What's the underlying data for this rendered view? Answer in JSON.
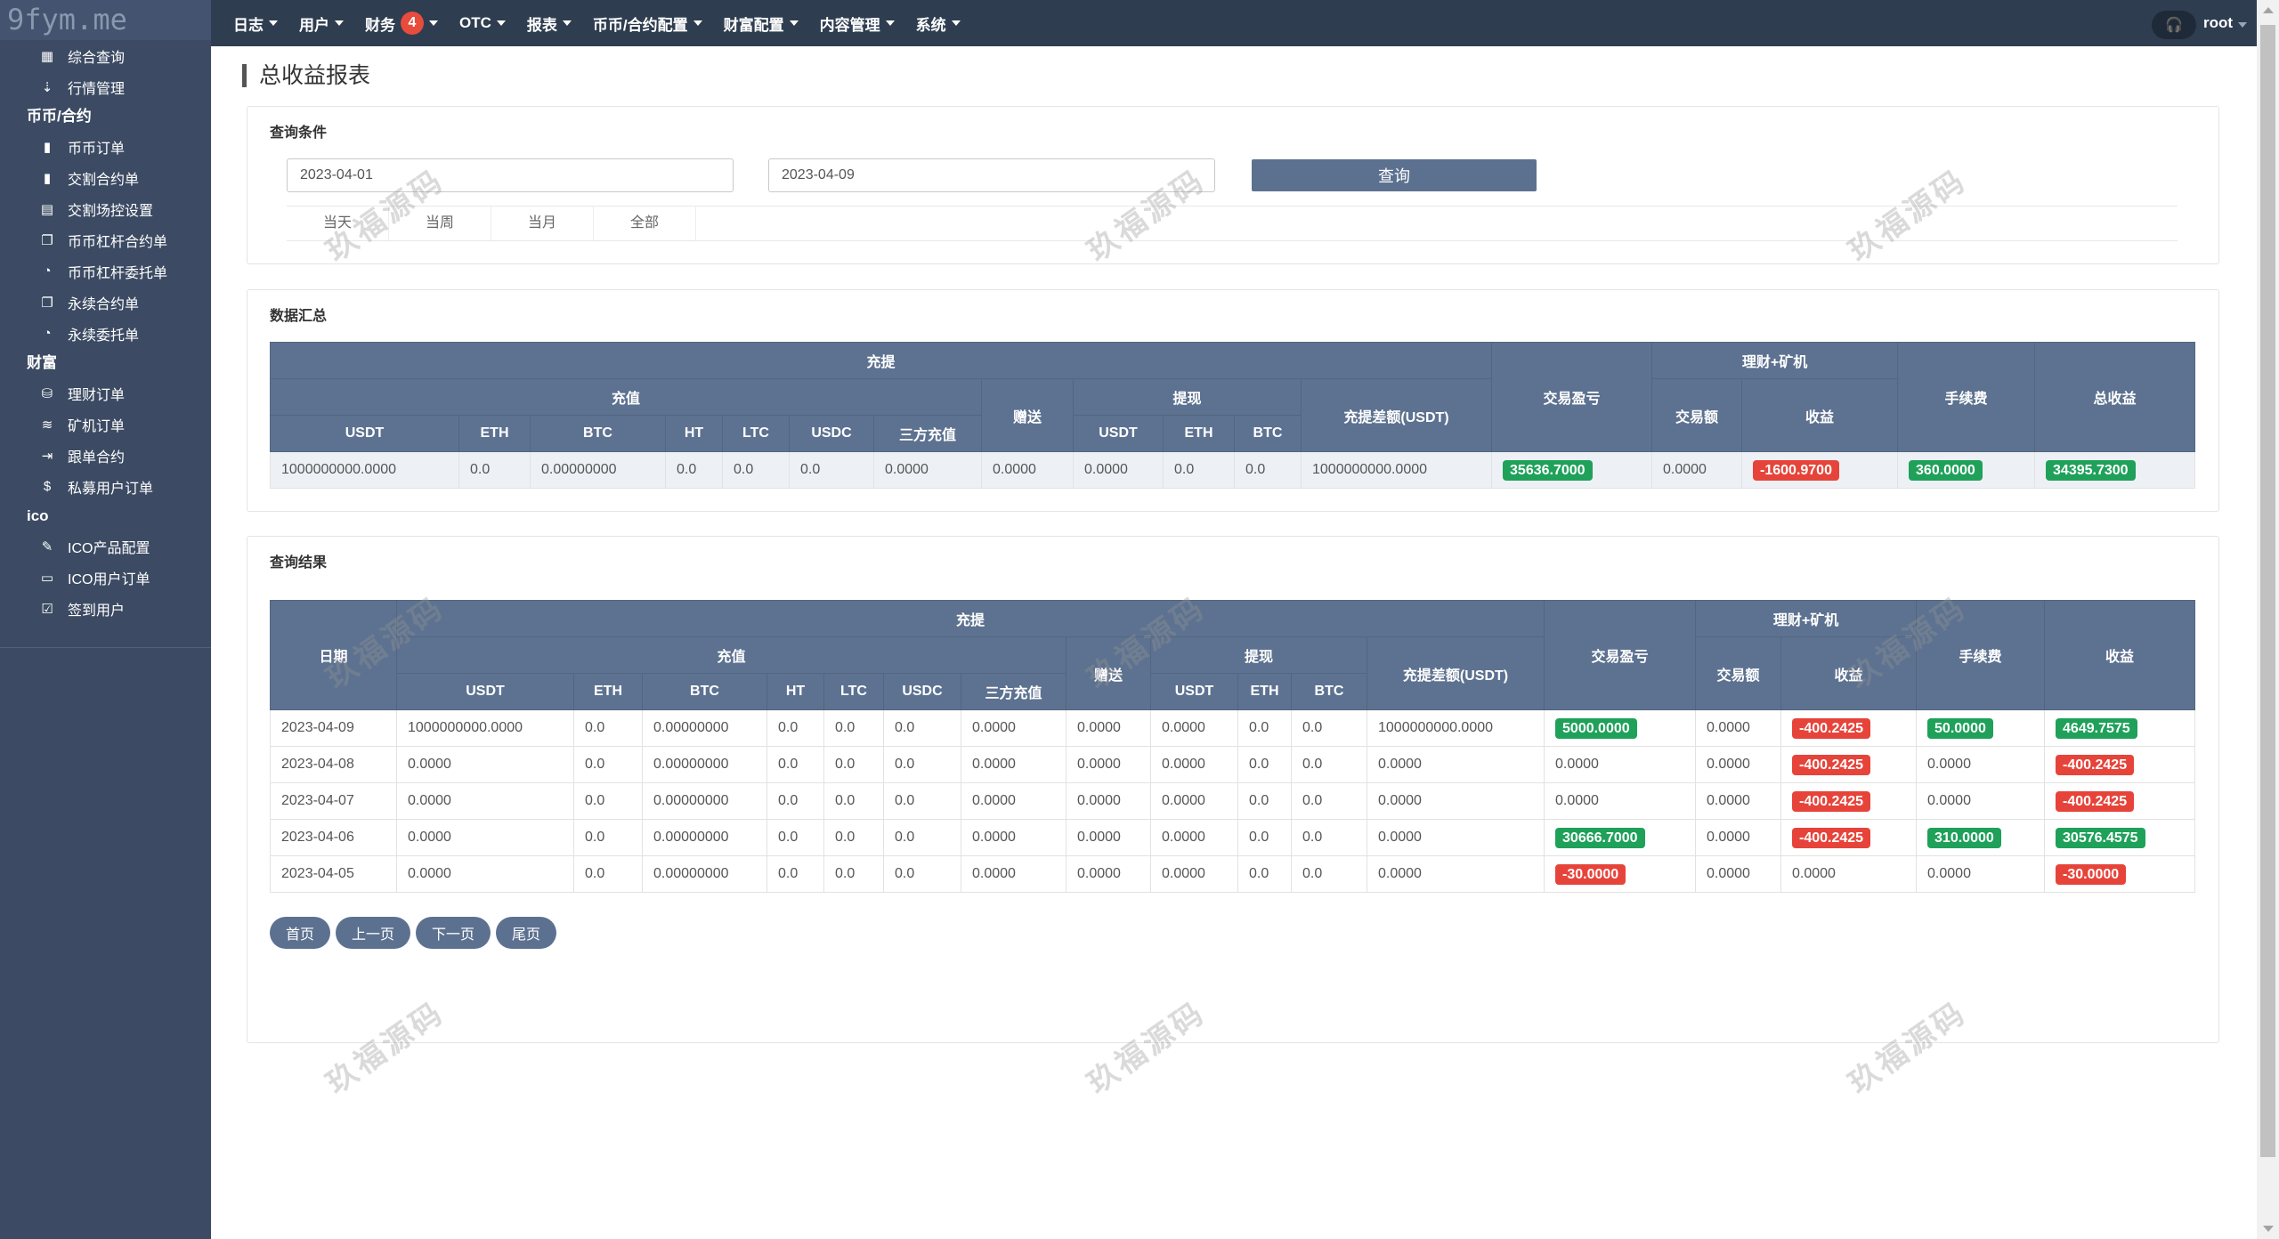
{
  "logo": "9fym.me",
  "sidebar": {
    "entries": [
      {
        "type": "item",
        "label": "综合查询",
        "icon": "grid-icon"
      },
      {
        "type": "item",
        "label": "行情管理",
        "icon": "sort-icon"
      },
      {
        "type": "group",
        "label": "币币/合约"
      },
      {
        "type": "item",
        "label": "币币订单",
        "icon": "bookmark-icon"
      },
      {
        "type": "item",
        "label": "交割合约单",
        "icon": "bookmark-icon"
      },
      {
        "type": "item",
        "label": "交割场控设置",
        "icon": "settings-doc-icon"
      },
      {
        "type": "item",
        "label": "币币杠杆合约单",
        "icon": "copy-icon"
      },
      {
        "type": "item",
        "label": "币币杠杆委托单",
        "icon": "clock-doc-icon"
      },
      {
        "type": "item",
        "label": "永续合约单",
        "icon": "copy-icon"
      },
      {
        "type": "item",
        "label": "永续委托单",
        "icon": "clock-doc-icon"
      },
      {
        "type": "group",
        "label": "财富"
      },
      {
        "type": "item",
        "label": "理财订单",
        "icon": "database-icon"
      },
      {
        "type": "item",
        "label": "矿机订单",
        "icon": "layers-icon"
      },
      {
        "type": "item",
        "label": "跟单合约",
        "icon": "export-icon"
      },
      {
        "type": "item",
        "label": "私募用户订单",
        "icon": "dollar-icon"
      },
      {
        "type": "group",
        "label": "ico"
      },
      {
        "type": "item",
        "label": "ICO产品配置",
        "icon": "edit-doc-icon"
      },
      {
        "type": "item",
        "label": "ICO用户订单",
        "icon": "monitor-icon"
      },
      {
        "type": "item",
        "label": "签到用户",
        "icon": "edit-icon"
      }
    ]
  },
  "topnav": {
    "items": [
      {
        "label": "日志"
      },
      {
        "label": "用户"
      },
      {
        "label": "财务",
        "badge": "4"
      },
      {
        "label": "OTC"
      },
      {
        "label": "报表"
      },
      {
        "label": "币币/合约配置"
      },
      {
        "label": "财富配置"
      },
      {
        "label": "内容管理"
      },
      {
        "label": "系统"
      }
    ],
    "support_icon": "headset-icon",
    "user": "root"
  },
  "page_title": "总收益报表",
  "query": {
    "title": "查询条件",
    "start_date": "2023-04-01",
    "end_date": "2023-04-09",
    "button": "查询",
    "quick": [
      "当天",
      "当周",
      "当月",
      "全部"
    ]
  },
  "summary": {
    "title": "数据汇总",
    "header_groups": {
      "chongti": "充提",
      "chongzhi": "充值",
      "zengsong": "赠送",
      "tixian": "提现",
      "diff": "充提差额(USDT)",
      "trade_pl": "交易盈亏",
      "licai": "理财+矿机",
      "trade_amt": "交易额",
      "income": "收益",
      "fee": "手续费",
      "total": "总收益"
    },
    "chongzhi_cols": [
      "USDT",
      "ETH",
      "BTC",
      "HT",
      "LTC",
      "USDC",
      "三方充值"
    ],
    "tixian_cols": [
      "USDT",
      "ETH",
      "BTC"
    ],
    "row": [
      {
        "text": "1000000000.0000"
      },
      {
        "text": "0.0"
      },
      {
        "text": "0.00000000"
      },
      {
        "text": "0.0"
      },
      {
        "text": "0.0"
      },
      {
        "text": "0.0"
      },
      {
        "text": "0.0000"
      },
      {
        "text": "0.0000"
      },
      {
        "text": "0.0000"
      },
      {
        "text": "0.0"
      },
      {
        "text": "0.0"
      },
      {
        "text": "1000000000.0000"
      },
      {
        "text": "35636.7000",
        "badge": "green"
      },
      {
        "text": "0.0000"
      },
      {
        "text": "-1600.9700",
        "badge": "red"
      },
      {
        "text": "360.0000",
        "badge": "green"
      },
      {
        "text": "34395.7300",
        "badge": "green"
      }
    ]
  },
  "results": {
    "title": "查询结果",
    "header_groups": {
      "date": "日期",
      "chongti": "充提",
      "chongzhi": "充值",
      "zengsong": "赠送",
      "tixian": "提现",
      "diff": "充提差额(USDT)",
      "trade_pl": "交易盈亏",
      "licai": "理财+矿机",
      "trade_amt": "交易额",
      "income": "收益",
      "fee": "手续费",
      "total": "收益"
    },
    "chongzhi_cols": [
      "USDT",
      "ETH",
      "BTC",
      "HT",
      "LTC",
      "USDC",
      "三方充值"
    ],
    "tixian_cols": [
      "USDT",
      "ETH",
      "BTC"
    ],
    "rows": [
      [
        {
          "text": "2023-04-09"
        },
        {
          "text": "1000000000.0000"
        },
        {
          "text": "0.0"
        },
        {
          "text": "0.00000000"
        },
        {
          "text": "0.0"
        },
        {
          "text": "0.0"
        },
        {
          "text": "0.0"
        },
        {
          "text": "0.0000"
        },
        {
          "text": "0.0000"
        },
        {
          "text": "0.0000"
        },
        {
          "text": "0.0"
        },
        {
          "text": "0.0"
        },
        {
          "text": "1000000000.0000"
        },
        {
          "text": "5000.0000",
          "badge": "green"
        },
        {
          "text": "0.0000"
        },
        {
          "text": "-400.2425",
          "badge": "red"
        },
        {
          "text": "50.0000",
          "badge": "green"
        },
        {
          "text": "4649.7575",
          "badge": "green"
        }
      ],
      [
        {
          "text": "2023-04-08"
        },
        {
          "text": "0.0000"
        },
        {
          "text": "0.0"
        },
        {
          "text": "0.00000000"
        },
        {
          "text": "0.0"
        },
        {
          "text": "0.0"
        },
        {
          "text": "0.0"
        },
        {
          "text": "0.0000"
        },
        {
          "text": "0.0000"
        },
        {
          "text": "0.0000"
        },
        {
          "text": "0.0"
        },
        {
          "text": "0.0"
        },
        {
          "text": "0.0000"
        },
        {
          "text": "0.0000"
        },
        {
          "text": "0.0000"
        },
        {
          "text": "-400.2425",
          "badge": "red"
        },
        {
          "text": "0.0000"
        },
        {
          "text": "-400.2425",
          "badge": "red"
        }
      ],
      [
        {
          "text": "2023-04-07"
        },
        {
          "text": "0.0000"
        },
        {
          "text": "0.0"
        },
        {
          "text": "0.00000000"
        },
        {
          "text": "0.0"
        },
        {
          "text": "0.0"
        },
        {
          "text": "0.0"
        },
        {
          "text": "0.0000"
        },
        {
          "text": "0.0000"
        },
        {
          "text": "0.0000"
        },
        {
          "text": "0.0"
        },
        {
          "text": "0.0"
        },
        {
          "text": "0.0000"
        },
        {
          "text": "0.0000"
        },
        {
          "text": "0.0000"
        },
        {
          "text": "-400.2425",
          "badge": "red"
        },
        {
          "text": "0.0000"
        },
        {
          "text": "-400.2425",
          "badge": "red"
        }
      ],
      [
        {
          "text": "2023-04-06"
        },
        {
          "text": "0.0000"
        },
        {
          "text": "0.0"
        },
        {
          "text": "0.00000000"
        },
        {
          "text": "0.0"
        },
        {
          "text": "0.0"
        },
        {
          "text": "0.0"
        },
        {
          "text": "0.0000"
        },
        {
          "text": "0.0000"
        },
        {
          "text": "0.0000"
        },
        {
          "text": "0.0"
        },
        {
          "text": "0.0"
        },
        {
          "text": "0.0000"
        },
        {
          "text": "30666.7000",
          "badge": "green"
        },
        {
          "text": "0.0000"
        },
        {
          "text": "-400.2425",
          "badge": "red"
        },
        {
          "text": "310.0000",
          "badge": "green"
        },
        {
          "text": "30576.4575",
          "badge": "green"
        }
      ],
      [
        {
          "text": "2023-04-05"
        },
        {
          "text": "0.0000"
        },
        {
          "text": "0.0"
        },
        {
          "text": "0.00000000"
        },
        {
          "text": "0.0"
        },
        {
          "text": "0.0"
        },
        {
          "text": "0.0"
        },
        {
          "text": "0.0000"
        },
        {
          "text": "0.0000"
        },
        {
          "text": "0.0000"
        },
        {
          "text": "0.0"
        },
        {
          "text": "0.0"
        },
        {
          "text": "0.0000"
        },
        {
          "text": "-30.0000",
          "badge": "red"
        },
        {
          "text": "0.0000"
        },
        {
          "text": "0.0000"
        },
        {
          "text": "0.0000"
        },
        {
          "text": "-30.0000",
          "badge": "red"
        }
      ]
    ],
    "pager": [
      "首页",
      "上一页",
      "下一页",
      "尾页"
    ]
  },
  "watermark": "玖福源码",
  "colors": {
    "header": "#5d7290",
    "topbar": "#2f3d50",
    "sidebar": "#3c4b63",
    "positive": "#1fa15a",
    "negative": "#e6443a",
    "badge": "#e74c3c"
  }
}
